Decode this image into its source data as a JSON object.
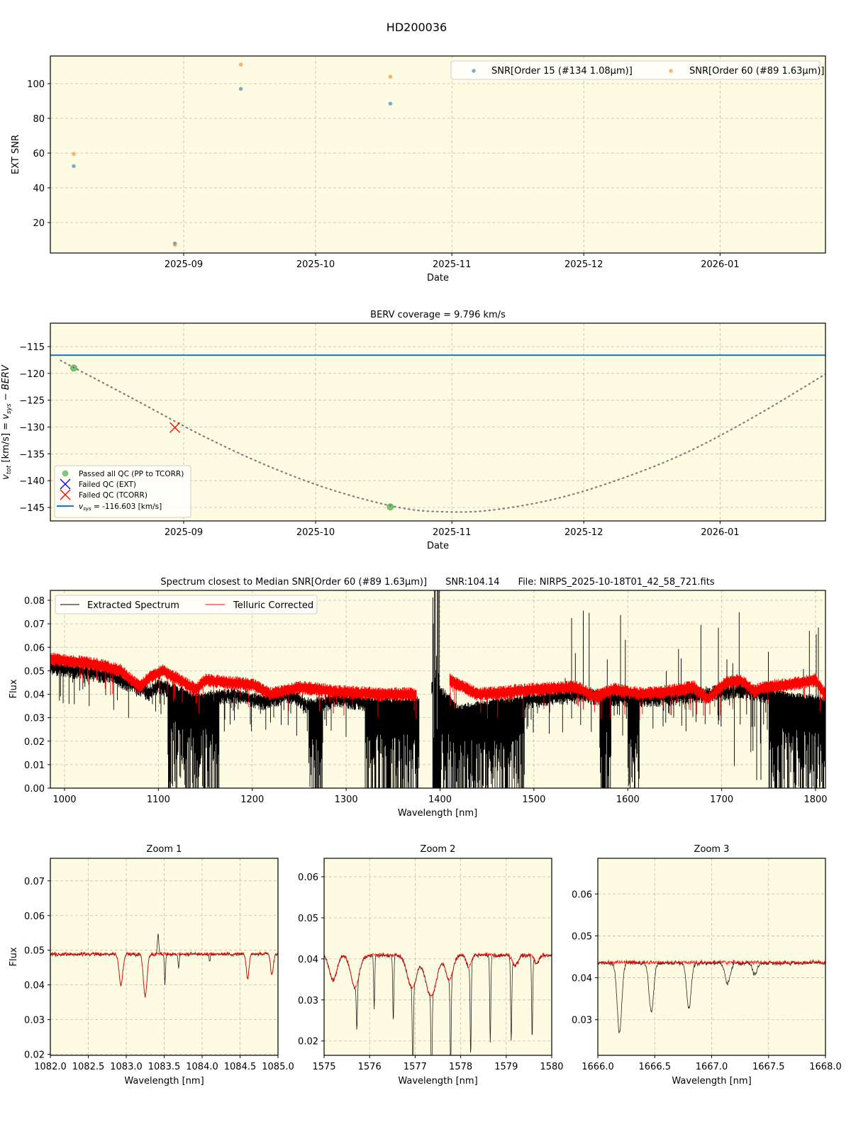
{
  "suptitle": "HD200036",
  "chart_data": [
    {
      "id": "snr",
      "type": "scatter",
      "title": "",
      "xlabel": "Date",
      "ylabel": "EXT SNR",
      "x_ticks": [
        "2025-09",
        "2025-10",
        "2025-11",
        "2025-12",
        "2026-01"
      ],
      "y_ticks": [
        20,
        40,
        60,
        80,
        100
      ],
      "ylim": [
        2,
        116
      ],
      "xlim": [
        "2025-08-04",
        "2026-01-28"
      ],
      "grid": true,
      "legend_position": "upper right",
      "series": [
        {
          "name": "SNR[Order 15 (#134 1.08μm)]",
          "color": "#1f77b4",
          "x": [
            "2025-08-07",
            "2025-08-30",
            "2025-09-14",
            "2025-10-18"
          ],
          "y": [
            52.5,
            8.0,
            97.0,
            88.5
          ]
        },
        {
          "name": "SNR[Order 60 (#89 1.63μm)]",
          "color": "#ff7f0e",
          "x": [
            "2025-08-07",
            "2025-08-30",
            "2025-09-14",
            "2025-10-18"
          ],
          "y": [
            59.5,
            7.2,
            111.0,
            104.0
          ]
        }
      ]
    },
    {
      "id": "berv",
      "type": "line",
      "title": "BERV coverage = 9.796 km/s",
      "xlabel": "Date",
      "ylabel": "v_tot [km/s] = v_sys − BERV",
      "x_ticks": [
        "2025-09",
        "2025-10",
        "2025-11",
        "2025-12",
        "2026-01"
      ],
      "y_ticks": [
        -115,
        -120,
        -125,
        -130,
        -135,
        -140,
        -145
      ],
      "ylim": [
        -147,
        -111
      ],
      "grid": true,
      "legend_position": "lower left",
      "legend": [
        {
          "label": "Passed all QC (PP to TCORR)",
          "marker": "circle",
          "color": "#2ca02c"
        },
        {
          "label": "Failed QC (EXT)",
          "marker": "x",
          "color": "#0000ff"
        },
        {
          "label": "Failed QC (TCORR)",
          "marker": "x",
          "color": "#ff0000"
        },
        {
          "label": "v_sys = -116.603 [km/s]",
          "marker": "line",
          "color": "#1f77b4"
        }
      ],
      "vsys": -116.603,
      "berv_curve": {
        "x": [
          "2025-08-04",
          "2025-08-20",
          "2025-09-05",
          "2025-09-20",
          "2025-10-05",
          "2025-10-20",
          "2025-10-30",
          "2025-11-10",
          "2025-11-25",
          "2025-12-10",
          "2025-12-25",
          "2026-01-10",
          "2026-01-28"
        ],
        "y": [
          -117.6,
          -124.5,
          -131.5,
          -137.2,
          -141.8,
          -145.0,
          -145.8,
          -145.5,
          -143.3,
          -139.5,
          -134.5,
          -127.5,
          -118.6
        ]
      },
      "passed": {
        "x": [
          "2025-08-07",
          "2025-10-18"
        ],
        "y": [
          -119.0,
          -144.9
        ]
      },
      "failed_ext": {
        "x": [],
        "y": []
      },
      "failed_tcorr": {
        "x": [
          "2025-08-30"
        ],
        "y": [
          -130.1
        ]
      }
    },
    {
      "id": "spectrum",
      "type": "line",
      "title": "Spectrum closest to Median SNR[Order 60 (#89 1.63μm)]     SNR:104.14     File: NIRPS_2025-10-18T01_42_58_721.fits",
      "xlabel": "Wavelength [nm]",
      "ylabel": "Flux",
      "x_ticks": [
        1000,
        1100,
        1200,
        1300,
        1400,
        1500,
        1600,
        1700,
        1800
      ],
      "y_ticks": [
        0.0,
        0.01,
        0.02,
        0.03,
        0.04,
        0.05,
        0.06,
        0.07,
        0.08
      ],
      "xlim": [
        985,
        1810
      ],
      "ylim": [
        0.0,
        0.084
      ],
      "grid": true,
      "legend_position": "upper left",
      "series": [
        {
          "name": "Extracted Spectrum",
          "color": "#000000",
          "continuum_x": [
            985,
            1050,
            1090,
            1100,
            1140,
            1180,
            1210,
            1240,
            1260,
            1290,
            1340,
            1378,
            1392,
            1420,
            1500,
            1550,
            1600,
            1650,
            1700,
            1720,
            1760,
            1810
          ],
          "continuum_y": [
            0.054,
            0.05,
            0.043,
            0.046,
            0.04,
            0.042,
            0.039,
            0.042,
            0.037,
            0.04,
            0.038,
            0.038,
            0.045,
            0.035,
            0.04,
            0.042,
            0.04,
            0.041,
            0.043,
            0.044,
            0.041,
            0.038
          ],
          "absorption_bands_nm": [
            [
              1110,
              1165
            ],
            [
              1260,
              1275
            ],
            [
              1320,
              1378
            ],
            [
              1392,
              1490
            ],
            [
              1570,
              1582
            ],
            [
              1600,
              1612
            ],
            [
              1750,
              1810
            ]
          ]
        },
        {
          "name": "Telluric Corrected",
          "color": "#ff0000",
          "continuum_x": [
            985,
            1030,
            1060,
            1080,
            1090,
            1105,
            1140,
            1150,
            1200,
            1220,
            1250,
            1290,
            1340,
            1375,
            1410,
            1440,
            1500,
            1545,
            1565,
            1585,
            1600,
            1615,
            1640,
            1670,
            1685,
            1705,
            1720,
            1735,
            1745,
            1770,
            1800,
            1810
          ],
          "continuum_y": [
            0.055,
            0.053,
            0.05,
            0.043,
            0.047,
            0.05,
            0.042,
            0.046,
            0.044,
            0.04,
            0.043,
            0.041,
            0.04,
            0.04,
            0.046,
            0.04,
            0.042,
            0.043,
            0.039,
            0.042,
            0.041,
            0.04,
            0.041,
            0.043,
            0.038,
            0.045,
            0.046,
            0.041,
            0.043,
            0.044,
            0.046,
            0.04
          ]
        }
      ]
    },
    {
      "id": "zoom1",
      "type": "line",
      "title": "Zoom 1",
      "xlabel": "Wavelength [nm]",
      "ylabel": "Flux",
      "x_ticks": [
        "1082.0",
        "1082.5",
        "1083.0",
        "1083.5",
        "1084.0",
        "1084.5",
        "1085.0"
      ],
      "y_ticks": [
        "0.02",
        "0.03",
        "0.04",
        "0.05",
        "0.06",
        "0.07"
      ],
      "xlim": [
        1082.0,
        1085.0
      ],
      "ylim": [
        0.0197,
        0.0765
      ],
      "grid": true,
      "continuum": 0.049,
      "lines_red": [
        [
          1082.93,
          0.04,
          0.04
        ],
        [
          1083.25,
          0.037,
          0.04
        ],
        [
          1084.6,
          0.042,
          0.03
        ],
        [
          1084.92,
          0.043,
          0.03
        ]
      ],
      "lines_black_only": [
        [
          1083.51,
          0.0405
        ],
        [
          1083.69,
          0.045
        ],
        [
          1084.1,
          0.047
        ]
      ],
      "emission_black": [
        [
          1083.42,
          0.055
        ]
      ]
    },
    {
      "id": "zoom2",
      "type": "line",
      "title": "Zoom 2",
      "xlabel": "Wavelength [nm]",
      "ylabel": "",
      "x_ticks": [
        "1575",
        "1576",
        "1577",
        "1578",
        "1579",
        "1580"
      ],
      "y_ticks": [
        "0.02",
        "0.03",
        "0.04",
        "0.05",
        "0.06"
      ],
      "xlim": [
        1575,
        1580
      ],
      "ylim": [
        0.0165,
        0.0645
      ],
      "grid": true,
      "continuum": 0.041,
      "lines_red": [
        [
          1575.2,
          0.035,
          0.08
        ],
        [
          1575.68,
          0.033,
          0.09
        ],
        [
          1576.93,
          0.033,
          0.1
        ],
        [
          1577.35,
          0.031,
          0.12
        ],
        [
          1577.75,
          0.035,
          0.08
        ],
        [
          1578.18,
          0.038,
          0.05
        ],
        [
          1579.2,
          0.0385,
          0.06
        ],
        [
          1579.67,
          0.039,
          0.05
        ]
      ],
      "lines_black_only": [
        [
          1575.72,
          0.03
        ],
        [
          1576.1,
          0.028
        ],
        [
          1576.52,
          0.025
        ],
        [
          1576.95,
          0.018
        ],
        [
          1577.36,
          0.016
        ],
        [
          1577.78,
          0.018
        ],
        [
          1578.22,
          0.0185
        ],
        [
          1578.65,
          0.0195
        ],
        [
          1579.11,
          0.0205
        ],
        [
          1579.57,
          0.021
        ]
      ],
      "emission_black": []
    },
    {
      "id": "zoom3",
      "type": "line",
      "title": "Zoom 3",
      "xlabel": "Wavelength [nm]",
      "ylabel": "",
      "x_ticks": [
        "1666.0",
        "1666.5",
        "1667.0",
        "1667.5",
        "1668.0"
      ],
      "y_ticks": [
        "0.03",
        "0.04",
        "0.05",
        "0.06"
      ],
      "xlim": [
        1666.0,
        1668.0
      ],
      "ylim": [
        0.0215,
        0.0685
      ],
      "grid": true,
      "continuum": 0.0437,
      "lines_red": [],
      "lines_black_only": [
        [
          1666.19,
          0.027,
          0.05
        ],
        [
          1666.47,
          0.032,
          0.05
        ],
        [
          1666.8,
          0.033,
          0.05
        ],
        [
          1667.14,
          0.039,
          0.06
        ],
        [
          1667.38,
          0.041,
          0.05
        ]
      ],
      "emission_black": []
    }
  ]
}
